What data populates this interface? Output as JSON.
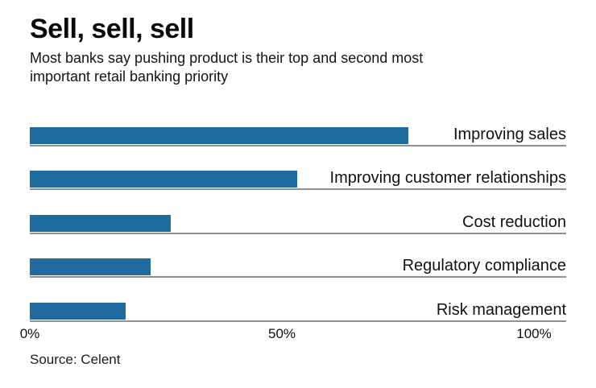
{
  "chart_data": {
    "type": "bar",
    "orientation": "horizontal",
    "title": "Sell, sell, sell",
    "subtitle": "Most banks say pushing product is their top and second most important retail banking priority",
    "categories": [
      "Improving sales",
      "Improving customer relationships",
      "Cost reduction",
      "Regulatory compliance",
      "Risk management"
    ],
    "values": [
      75,
      53,
      28,
      24,
      19
    ],
    "unit": "%",
    "xlim": [
      0,
      100
    ],
    "x_ticks": [
      "0%",
      "50%",
      "100%"
    ],
    "legend": "none",
    "grid": "off",
    "bar_color": "#1f6a9f",
    "baseline_color": "#919191",
    "source": "Source: Celent"
  }
}
